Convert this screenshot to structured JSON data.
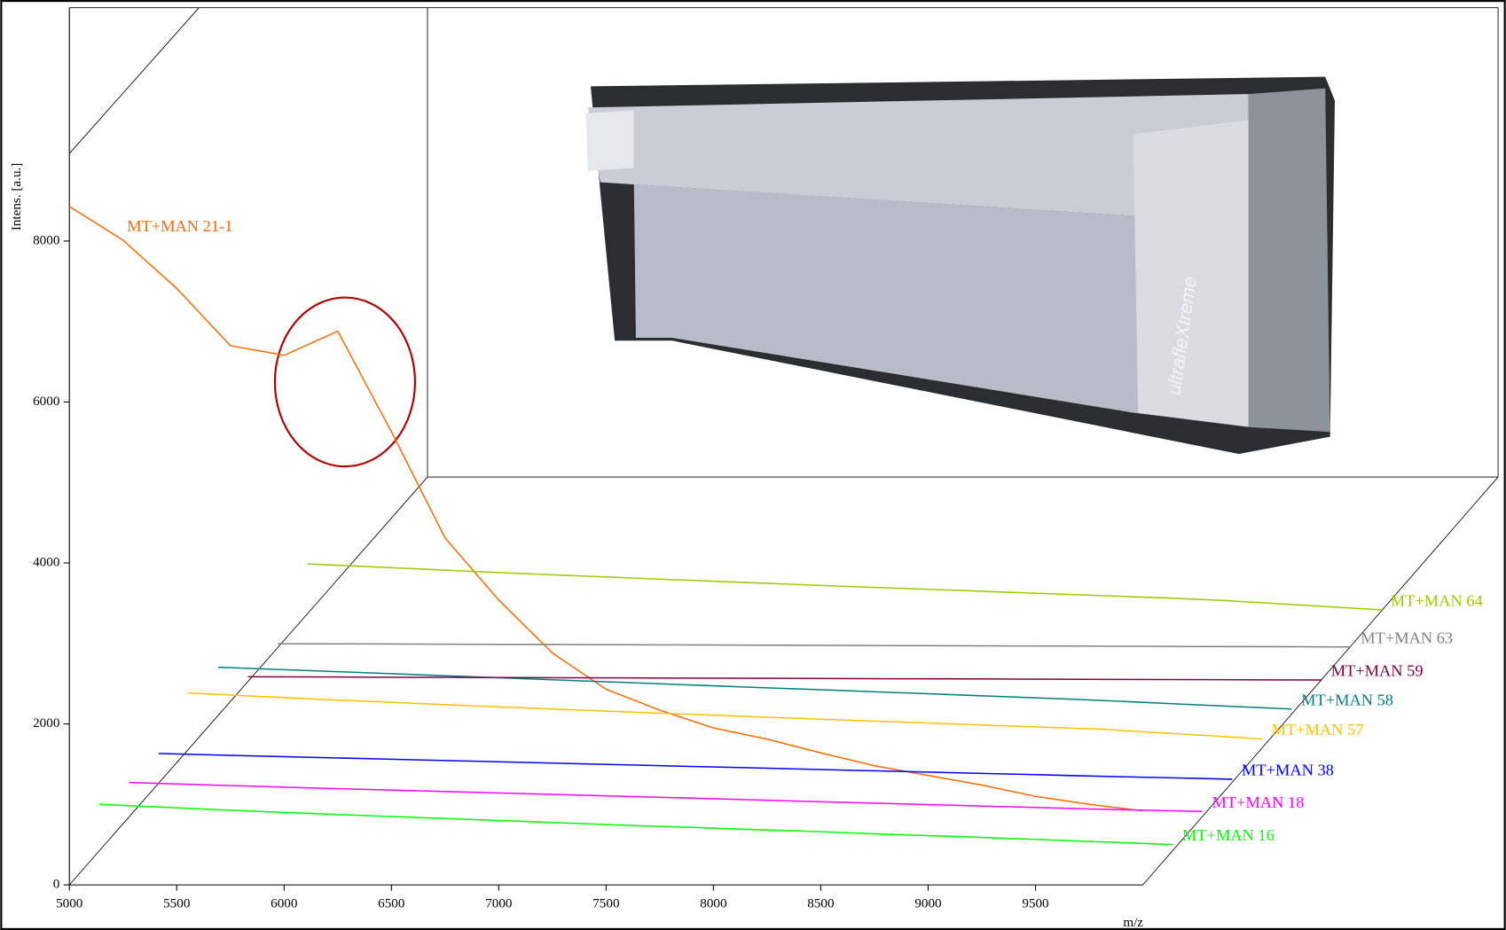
{
  "chart_data": {
    "type": "line3d",
    "x_label": "m/z",
    "y_label": "Intens. [a.u.]",
    "xlim": [
      5000,
      10000
    ],
    "xticks": [
      5000,
      5500,
      6000,
      6500,
      7000,
      7500,
      8000,
      8500,
      9000,
      9500
    ],
    "ylim": [
      0,
      10900
    ],
    "yticks": [
      0,
      2000,
      4000,
      6000,
      8000
    ],
    "annotations": [
      "ultrafleXtreme"
    ],
    "x": [
      5000,
      5250,
      5500,
      5750,
      6000,
      6250,
      6500,
      6750,
      7000,
      7250,
      7500,
      7750,
      8000,
      8250,
      8500,
      8750,
      9000,
      9250,
      9500,
      9750,
      10000
    ],
    "series": [
      {
        "name": "MT+MAN 21-1",
        "color": "#ff6a00",
        "values": [
          8430,
          8010,
          7410,
          6700,
          6580,
          6880,
          5630,
          4310,
          3540,
          2880,
          2430,
          2170,
          1950,
          1810,
          1640,
          1480,
          1360,
          1240,
          1100,
          1000,
          920
        ]
      },
      {
        "name": "MT+MAN 16",
        "color": "#00ff00",
        "values": [
          580,
          550,
          520,
          490,
          465,
          440,
          415,
          390,
          365,
          340,
          315,
          295,
          270,
          250,
          225,
          200,
          180,
          155,
          130,
          105,
          80
        ]
      },
      {
        "name": "MT+MAN 18",
        "color": "#ff00ff",
        "values": [
          430,
          410,
          390,
          370,
          352,
          334,
          316,
          298,
          280,
          262,
          244,
          226,
          208,
          190,
          172,
          154,
          136,
          118,
          100,
          85,
          70
        ]
      },
      {
        "name": "MT+MAN 38",
        "color": "#0000ff",
        "values": [
          370,
          352,
          336,
          320,
          304,
          288,
          272,
          256,
          240,
          224,
          208,
          192,
          176,
          160,
          144,
          128,
          112,
          96,
          80,
          65,
          50
        ]
      },
      {
        "name": "MT+MAN 57",
        "color": "#ffc000",
        "values": [
          700,
          668,
          636,
          606,
          578,
          550,
          522,
          496,
          470,
          444,
          418,
          394,
          370,
          346,
          322,
          298,
          274,
          250,
          210,
          170,
          130
        ]
      },
      {
        "name": "MT+MAN 58",
        "color": "#008080",
        "values": [
          600,
          575,
          550,
          525,
          500,
          475,
          450,
          425,
          400,
          375,
          350,
          325,
          300,
          275,
          250,
          225,
          200,
          170,
          140,
          110,
          80
        ]
      },
      {
        "name": "MT+MAN 59",
        "color": "#800040",
        "values": [
          60,
          58,
          56,
          54,
          52,
          50,
          48,
          46,
          44,
          42,
          40,
          38,
          36,
          34,
          32,
          30,
          28,
          26,
          24,
          22,
          20
        ]
      },
      {
        "name": "MT+MAN 63",
        "color": "#808080",
        "values": [
          50,
          48,
          46,
          44,
          42,
          40,
          38,
          36,
          34,
          32,
          30,
          28,
          26,
          24,
          22,
          20,
          18,
          16,
          14,
          12,
          10
        ]
      },
      {
        "name": "MT+MAN 64",
        "color": "#99cc00",
        "values": [
          620,
          590,
          560,
          530,
          502,
          474,
          446,
          420,
          394,
          368,
          342,
          318,
          294,
          270,
          246,
          222,
          198,
          168,
          130,
          90,
          50
        ]
      }
    ]
  }
}
